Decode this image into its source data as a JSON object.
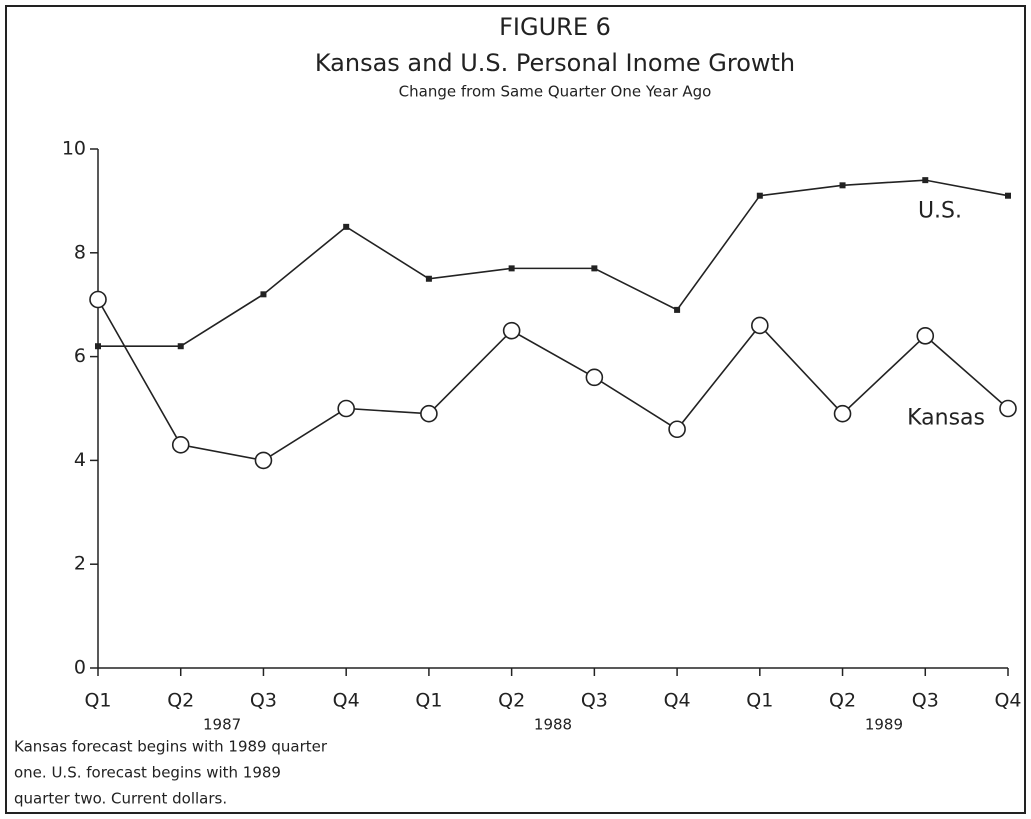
{
  "chart_data": {
    "type": "line",
    "title": "FIGURE 6",
    "subtitle": "Kansas and U.S. Personal Inome Growth",
    "subtitle2": "Change from Same Quarter One Year Ago",
    "categories": [
      "Q1",
      "Q2",
      "Q3",
      "Q4",
      "Q1",
      "Q2",
      "Q3",
      "Q4",
      "Q1",
      "Q2",
      "Q3",
      "Q4"
    ],
    "year_labels": [
      "1987",
      "1988",
      "1989"
    ],
    "series": [
      {
        "name": "U.S.",
        "color": "#222222",
        "marker": "square",
        "values": [
          6.2,
          6.2,
          7.2,
          8.5,
          7.5,
          7.7,
          7.7,
          6.9,
          9.1,
          9.3,
          9.4,
          9.1
        ]
      },
      {
        "name": "Kansas",
        "color": "#222222",
        "marker": "circle",
        "values": [
          7.1,
          4.3,
          4.0,
          5.0,
          4.9,
          6.5,
          5.6,
          4.6,
          6.6,
          4.9,
          6.4,
          5.0
        ]
      }
    ],
    "ylim": [
      0,
      10
    ],
    "yticks": [
      0,
      2,
      4,
      6,
      8,
      10
    ],
    "note": [
      "Kansas forecast begins with 1989 quarter",
      "one.  U.S. forecast begins with 1989",
      "quarter two.  Current dollars."
    ]
  }
}
